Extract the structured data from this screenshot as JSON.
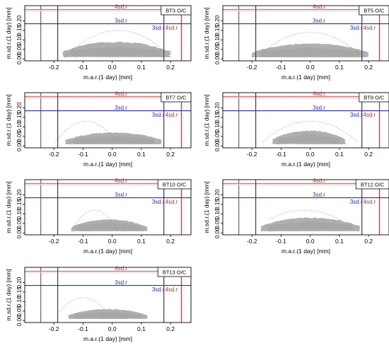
{
  "figure": {
    "colors": {
      "cloud": "#a6a6a6",
      "limit_4sd": "#d22a2a",
      "limit_3sd": "#2b2bc8",
      "frame": "#000000"
    },
    "x_axis_label": "m.a.r.(1 day) [mm]",
    "y_axis_label": "m.sd.r.(1 day) [mm]",
    "limit_labels": {
      "sd4": "4sd.r",
      "sd3": "3sd.r"
    }
  },
  "chart_data": [
    {
      "type": "scatter",
      "panel_title": "BT3 O/C",
      "xlabel": "m.a.r.(1 day) [mm]",
      "ylabel": "m.sd.r.(1 day) [mm]",
      "xlim": [
        -0.3,
        0.27
      ],
      "ylim": [
        -0.01,
        0.28
      ],
      "x_ticks": [
        "-0.2",
        "-0.1",
        "0.0",
        "0.1",
        "0.2"
      ],
      "y_ticks": [
        "0.00",
        "0.05",
        "0.10",
        "0.15",
        "0.20"
      ],
      "limits": {
        "sd4_x": [
          -0.245,
          0.237
        ],
        "sd4_y": 0.26,
        "sd3_x": [
          -0.187,
          0.177
        ],
        "sd3_y": 0.185
      },
      "limit_labels": [
        "4sd.r",
        "3sd.r",
        "3sd.r",
        "4sd.r"
      ],
      "cloud": {
        "x_range": [
          -0.17,
          0.2
        ],
        "y_range": [
          0.01,
          0.09
        ],
        "arc_peak": [
          0.02,
          0.15
        ],
        "arc_x_range": [
          -0.16,
          0.16
        ]
      },
      "grid": false
    },
    {
      "type": "scatter",
      "panel_title": "BT5 O/C",
      "xlabel": "m.a.r.(1 day) [mm]",
      "ylabel": "m.sd.r.(1 day) [mm]",
      "xlim": [
        -0.3,
        0.27
      ],
      "ylim": [
        -0.01,
        0.28
      ],
      "x_ticks": [
        "-0.2",
        "-0.1",
        "0.0",
        "0.1",
        "0.2"
      ],
      "y_ticks": [
        "0.00",
        "0.05",
        "0.10",
        "0.15",
        "0.20"
      ],
      "limits": {
        "sd4_x": [
          -0.245,
          0.237
        ],
        "sd4_y": 0.26,
        "sd3_x": [
          -0.187,
          0.177
        ],
        "sd3_y": 0.185
      },
      "limit_labels": [
        "4sd.r",
        "3sd.r",
        "3sd.r",
        "4sd.r"
      ],
      "cloud": {
        "x_range": [
          -0.2,
          0.2
        ],
        "y_range": [
          0.01,
          0.08
        ],
        "arc_peak": [
          0.0,
          0.14
        ],
        "arc_x_range": [
          -0.17,
          0.18
        ]
      },
      "grid": false
    },
    {
      "type": "scatter",
      "panel_title": "BT7 O/C",
      "xlabel": "m.a.r.(1 day) [mm]",
      "ylabel": "m.sd.r.(1 day) [mm]",
      "xlim": [
        -0.3,
        0.27
      ],
      "ylim": [
        -0.01,
        0.28
      ],
      "x_ticks": [
        "-0.2",
        "-0.1",
        "0.0",
        "0.1",
        "0.2"
      ],
      "y_ticks": [
        "0.00",
        "0.05",
        "0.10",
        "0.15",
        "0.20"
      ],
      "limits": {
        "sd4_x": [
          -0.245,
          0.237
        ],
        "sd4_y": 0.26,
        "sd3_x": [
          -0.187,
          0.177
        ],
        "sd3_y": 0.185
      },
      "limit_labels": [
        "4sd.r",
        "3sd.r",
        "3sd.r",
        "4sd.r"
      ],
      "cloud": {
        "x_range": [
          -0.16,
          0.17
        ],
        "y_range": [
          0.01,
          0.07
        ],
        "arc_peak": [
          -0.09,
          0.13
        ],
        "arc_x_range": [
          -0.2,
          0.02
        ]
      },
      "grid": false
    },
    {
      "type": "scatter",
      "panel_title": "BT8 O/C",
      "xlabel": "m.a.r.(1 day) [mm]",
      "ylabel": "m.sd.r.(1 day) [mm]",
      "xlim": [
        -0.3,
        0.27
      ],
      "ylim": [
        -0.01,
        0.28
      ],
      "x_ticks": [
        "-0.2",
        "-0.1",
        "0.0",
        "0.1",
        "0.2"
      ],
      "y_ticks": [
        "0.00",
        "0.05",
        "0.10",
        "0.15",
        "0.20"
      ],
      "limits": {
        "sd4_x": [
          -0.245,
          0.237
        ],
        "sd4_y": 0.26,
        "sd3_x": [
          -0.187,
          0.177
        ],
        "sd3_y": 0.185
      },
      "limit_labels": [
        "4sd.r",
        "3sd.r",
        "3sd.r",
        "4sd.r"
      ],
      "cloud": {
        "x_range": [
          -0.13,
          0.12
        ],
        "y_range": [
          0.01,
          0.08
        ],
        "arc_peak": [
          0.0,
          0.13
        ],
        "arc_x_range": [
          -0.17,
          0.17
        ]
      },
      "grid": false
    },
    {
      "type": "scatter",
      "panel_title": "BT10 O/C",
      "xlabel": "m.a.r.(1 day) [mm]",
      "ylabel": "m.sd.r.(1 day) [mm]",
      "xlim": [
        -0.3,
        0.27
      ],
      "ylim": [
        -0.01,
        0.28
      ],
      "x_ticks": [
        "-0.2",
        "-0.1",
        "0.0",
        "0.1",
        "0.2"
      ],
      "y_ticks": [
        "0.00",
        "0.05",
        "0.10",
        "0.15",
        "0.20"
      ],
      "limits": {
        "sd4_x": [
          -0.245,
          0.237
        ],
        "sd4_y": 0.26,
        "sd3_x": [
          -0.187,
          0.177
        ],
        "sd3_y": 0.185
      },
      "limit_labels": [
        "4sd.r",
        "3sd.r",
        "3sd.r",
        "4sd.r"
      ],
      "cloud": {
        "x_range": [
          -0.14,
          0.12
        ],
        "y_range": [
          0.01,
          0.07
        ],
        "arc_peak": [
          -0.06,
          0.12
        ],
        "arc_x_range": [
          -0.13,
          0.02
        ]
      },
      "grid": false
    },
    {
      "type": "scatter",
      "panel_title": "BT12 O/C",
      "xlabel": "m.a.r.(1 day) [mm]",
      "ylabel": "m.sd.r.(1 day) [mm]",
      "xlim": [
        -0.3,
        0.27
      ],
      "ylim": [
        -0.01,
        0.28
      ],
      "x_ticks": [
        "-0.2",
        "-0.1",
        "0.0",
        "0.1",
        "0.2"
      ],
      "y_ticks": [
        "0.00",
        "0.05",
        "0.10",
        "0.15",
        "0.20"
      ],
      "limits": {
        "sd4_x": [
          -0.245,
          0.237
        ],
        "sd4_y": 0.26,
        "sd3_x": [
          -0.187,
          0.177
        ],
        "sd3_y": 0.185
      },
      "limit_labels": [
        "4sd.r",
        "3sd.r",
        "3sd.r",
        "4sd.r"
      ],
      "cloud": {
        "x_range": [
          -0.17,
          0.17
        ],
        "y_range": [
          0.01,
          0.08
        ],
        "arc_peak": [
          -0.02,
          0.12
        ],
        "arc_x_range": [
          -0.14,
          0.16
        ]
      },
      "grid": false
    },
    {
      "type": "scatter",
      "panel_title": "BT13 O/C",
      "xlabel": "m.a.r.(1 day) [mm]",
      "ylabel": "m.sd.r.(1 day) [mm]",
      "xlim": [
        -0.3,
        0.27
      ],
      "ylim": [
        -0.01,
        0.28
      ],
      "x_ticks": [
        "-0.2",
        "-0.1",
        "0.0",
        "0.1",
        "0.2"
      ],
      "y_ticks": [
        "0.00",
        "0.05",
        "0.10",
        "0.15",
        "0.20"
      ],
      "limits": {
        "sd4_x": [
          -0.245,
          0.237
        ],
        "sd4_y": 0.26,
        "sd3_x": [
          -0.187,
          0.177
        ],
        "sd3_y": 0.185
      },
      "limit_labels": [
        "4sd.r",
        "3sd.r",
        "3sd.r",
        "4sd.r"
      ],
      "cloud": {
        "x_range": [
          -0.15,
          0.12
        ],
        "y_range": [
          0.01,
          0.06
        ],
        "arc_peak": [
          -0.1,
          0.12
        ],
        "arc_x_range": [
          -0.18,
          0.0
        ]
      },
      "grid": false
    }
  ]
}
